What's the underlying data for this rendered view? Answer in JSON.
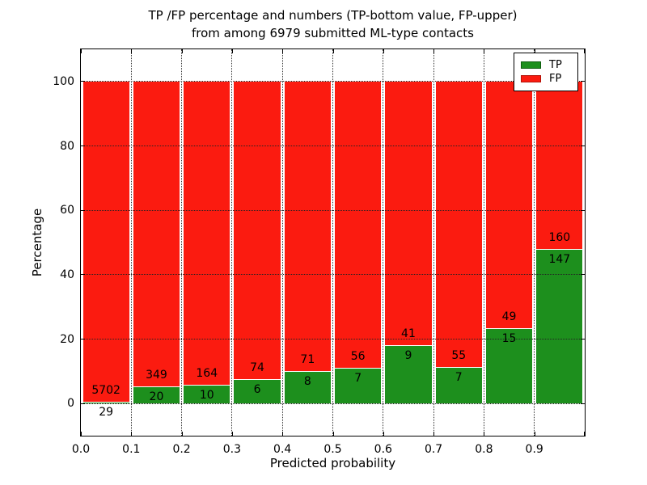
{
  "chart_data": {
    "type": "bar",
    "stacked": true,
    "title_line1": "TP /FP percentage and numbers (TP-bottom value, FP-upper)",
    "title_line2": "from among 6979 submitted ML-type contacts",
    "xlabel": "Predicted probability",
    "ylabel": "Percentage",
    "total_contacts": 6979,
    "xlim": [
      0.0,
      1.0
    ],
    "ylim": [
      -10,
      110
    ],
    "grid": true,
    "xticks": [
      "0.0",
      "0.1",
      "0.2",
      "0.3",
      "0.4",
      "0.5",
      "0.6",
      "0.7",
      "0.8",
      "0.9"
    ],
    "yticks": [
      "0",
      "20",
      "40",
      "60",
      "80",
      "100"
    ],
    "ytick_values": [
      0,
      20,
      40,
      60,
      80,
      100
    ],
    "bar_note": "bar height = TP/(TP+FP) in percent; FP fills remainder up to 100%",
    "bins": [
      {
        "x0": 0.0,
        "x1": 0.1,
        "tp": 29,
        "fp": 5702
      },
      {
        "x0": 0.1,
        "x1": 0.2,
        "tp": 20,
        "fp": 349
      },
      {
        "x0": 0.2,
        "x1": 0.3,
        "tp": 10,
        "fp": 164
      },
      {
        "x0": 0.3,
        "x1": 0.4,
        "tp": 6,
        "fp": 74
      },
      {
        "x0": 0.4,
        "x1": 0.5,
        "tp": 8,
        "fp": 71
      },
      {
        "x0": 0.5,
        "x1": 0.6,
        "tp": 7,
        "fp": 56
      },
      {
        "x0": 0.6,
        "x1": 0.7,
        "tp": 9,
        "fp": 41
      },
      {
        "x0": 0.7,
        "x1": 0.8,
        "tp": 7,
        "fp": 55
      },
      {
        "x0": 0.8,
        "x1": 0.9,
        "tp": 15,
        "fp": 49
      },
      {
        "x0": 0.9,
        "x1": 1.0,
        "tp": 147,
        "fp": 160
      }
    ],
    "legend": {
      "position": "upper right",
      "entries": [
        {
          "label": "TP",
          "color": "#1d8f1d"
        },
        {
          "label": "FP",
          "color": "#fb1b10"
        }
      ]
    },
    "colors": {
      "tp_green": "#1d8f1d",
      "fp_red": "#fb1b10",
      "bar_edge": "#ffffff",
      "grid": "#333333",
      "spine": "#000000",
      "background": "#ffffff"
    }
  }
}
